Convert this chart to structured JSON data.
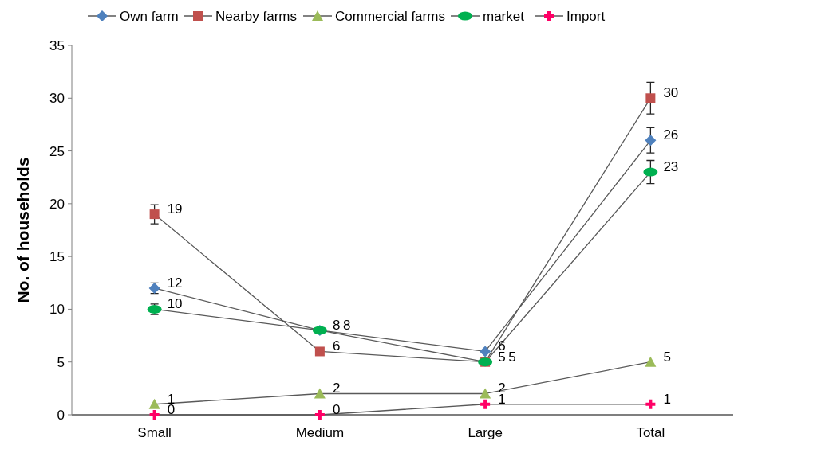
{
  "chart_data": {
    "type": "line",
    "ylabel": "No. of households",
    "categories": [
      "Small",
      "Medium",
      "Large",
      "Total"
    ],
    "ylim": [
      0,
      35
    ],
    "yticks": [
      0,
      5,
      10,
      15,
      20,
      25,
      30,
      35
    ],
    "grid": false,
    "legend": "top",
    "data_labels": true,
    "series": [
      {
        "name": "Own farm",
        "color": "#4f81bd",
        "marker": "diamond",
        "values": [
          12,
          8,
          6,
          26
        ],
        "errors": [
          0.5,
          null,
          null,
          1.2
        ]
      },
      {
        "name": "Nearby farms",
        "color": "#c0504d",
        "marker": "square",
        "values": [
          19,
          6,
          5,
          30
        ],
        "errors": [
          0.9,
          null,
          null,
          1.5
        ]
      },
      {
        "name": "Commercial farms",
        "color": "#9bbb59",
        "marker": "triangle",
        "values": [
          1,
          2,
          2,
          5
        ]
      },
      {
        "name": "market",
        "color": "#00b050",
        "marker": "circle",
        "values": [
          10,
          8,
          5,
          23
        ],
        "errors": [
          0.5,
          null,
          null,
          1.1
        ]
      },
      {
        "name": "Import",
        "color": "#ff0066",
        "marker": "cross",
        "values": [
          0,
          0,
          1,
          1
        ]
      }
    ]
  }
}
